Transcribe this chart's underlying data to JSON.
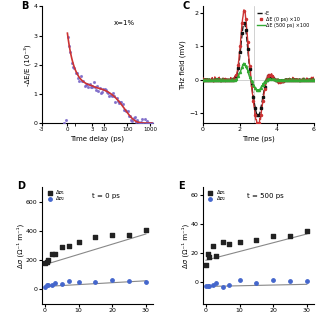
{
  "panel_b": {
    "label": "B",
    "annotation": "x=1%",
    "xlabel": "Time delay (ps)",
    "ylabel": "-ΔE/E (10⁻³)",
    "ylim": [
      0,
      4
    ],
    "yticks": [
      0,
      1,
      2,
      3,
      4
    ],
    "scatter_color": "#7b68c8",
    "fit_color": "#cc3333"
  },
  "panel_c": {
    "label": "C",
    "xlabel": "Time (ps)",
    "ylabel": "THz field (mV)",
    "xlim": [
      0,
      6
    ],
    "ylim": [
      -1.3,
      2.2
    ],
    "yticks": [
      -1,
      0,
      1,
      2
    ],
    "legend": [
      "E",
      "ΔE (0 ps) ×10",
      "ΔE (500 ps) ×100"
    ],
    "colors": [
      "#111111",
      "#cc3333",
      "#33aa33"
    ],
    "vline_x": 2.8
  },
  "panel_d": {
    "label": "D",
    "annotation": "t = 0 ps",
    "xlabel": "",
    "ylabel": "Δσ (Ω⁻¹ m⁻¹)",
    "ylim": [
      -100,
      700
    ],
    "yticks": [
      0,
      200,
      400,
      600
    ],
    "legend": [
      "Δσ₁",
      "Δσ₂"
    ],
    "scatter1_color": "#222222",
    "scatter2_color": "#4466cc",
    "fit_color": "#888888"
  },
  "panel_e": {
    "label": "E",
    "annotation": "t = 500 ps",
    "xlabel": "",
    "ylabel": "Δσ (Ω⁻¹ m⁻¹)",
    "ylim": [
      -15,
      65
    ],
    "yticks": [
      0,
      20,
      40,
      60
    ],
    "legend": [
      "Δσ₁",
      "Δσ₂"
    ],
    "scatter1_color": "#222222",
    "scatter2_color": "#4466cc",
    "fit_color": "#888888"
  }
}
